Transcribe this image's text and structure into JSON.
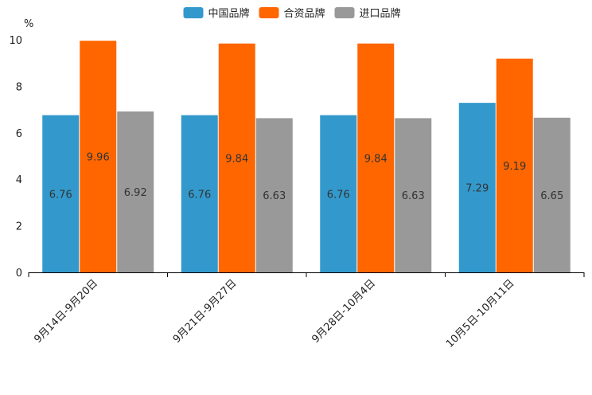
{
  "chart_data": {
    "type": "bar",
    "title": "",
    "xlabel": "",
    "ylabel": "%",
    "ylim": [
      0,
      10
    ],
    "yticks": [
      0,
      2,
      4,
      6,
      8,
      10
    ],
    "categories": [
      "9月14日-9月20日",
      "9月21日-9月27日",
      "9月28日-10月4日",
      "10月5日-10月11日"
    ],
    "series": [
      {
        "name": "中国品牌",
        "color": "#3399cc",
        "values": [
          6.76,
          6.76,
          6.76,
          7.29
        ],
        "labels": [
          "6.76",
          "6.76",
          "6.76",
          "7.29"
        ]
      },
      {
        "name": "合资品牌",
        "color": "#ff6600",
        "values": [
          9.96,
          9.84,
          9.84,
          9.19
        ],
        "labels": [
          "9.96",
          "9.84",
          "9.84",
          "9.19"
        ]
      },
      {
        "name": "进口品牌",
        "color": "#999999",
        "values": [
          6.92,
          6.63,
          6.63,
          6.65
        ],
        "labels": [
          "6.92",
          "6.63",
          "6.63",
          "6.65"
        ]
      }
    ],
    "legend": "top-center",
    "grid": false
  }
}
